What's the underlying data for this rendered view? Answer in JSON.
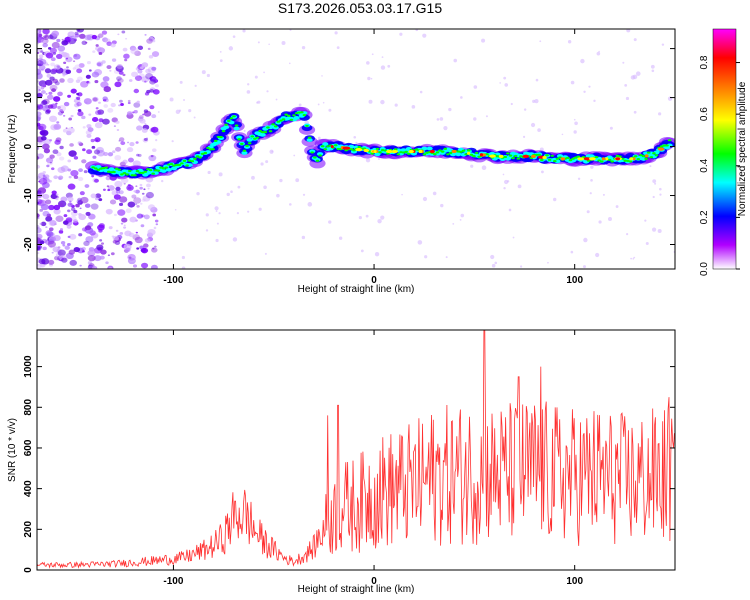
{
  "figure": {
    "title": "S173.2026.053.03.17.G15"
  },
  "chart_data": [
    {
      "type": "heatmap",
      "title": "S173.2026.053.03.17.G15",
      "xlabel": "Height of straight line (km)",
      "ylabel": "Frequency (Hz)",
      "xlim": [
        -168,
        150
      ],
      "ylim": [
        -25,
        24
      ],
      "xticks": [
        -100,
        0,
        100
      ],
      "yticks": [
        -20,
        -10,
        0,
        10,
        20
      ],
      "colorbar": {
        "label": "Normalized spectral amplitude",
        "range": [
          0,
          0.93
        ],
        "ticks": [
          "0.0",
          "0.2",
          "0.4",
          "0.6",
          "0.8"
        ],
        "colors": [
          "#ffffff",
          "#b000ff",
          "#0000ff",
          "#00ffff",
          "#00ff00",
          "#ffff00",
          "#ff8000",
          "#ff0000",
          "#ff00ff"
        ]
      },
      "ridge": {
        "x": [
          -140,
          -130,
          -120,
          -110,
          -100,
          -90,
          -80,
          -72,
          -70,
          -65,
          -60,
          -55,
          -50,
          -45,
          -40,
          -35,
          -33,
          -30,
          -28,
          -26,
          -25,
          -20,
          -10,
          0,
          10,
          20,
          30,
          40,
          50,
          60,
          70,
          80,
          90,
          100,
          110,
          120,
          130,
          140,
          148
        ],
        "y": [
          -4.5,
          -5,
          -5.5,
          -5,
          -4,
          -3,
          0,
          5,
          6,
          -1,
          2,
          3,
          4,
          6,
          6,
          7,
          3,
          -2,
          -3,
          0,
          0,
          0,
          -0.5,
          -1,
          -1,
          -1,
          -1,
          -1,
          -1.5,
          -2,
          -2,
          -2,
          -2.5,
          -2.5,
          -2.5,
          -2.5,
          -2.5,
          -1.5,
          1
        ]
      }
    },
    {
      "type": "line",
      "xlabel": "Height of straight line (km)",
      "ylabel": "SNR (10 * v/v)",
      "xlim": [
        -168,
        150
      ],
      "ylim": [
        0,
        1180
      ],
      "xticks": [
        -100,
        0,
        100
      ],
      "yticks": [
        0,
        200,
        400,
        600,
        800,
        1000
      ],
      "series": [
        {
          "name": "SNR",
          "color": "#ff3030",
          "x": [
            -168,
            -150,
            -130,
            -110,
            -95,
            -85,
            -80,
            -75,
            -70,
            -65,
            -62,
            -60,
            -55,
            -50,
            -45,
            -40,
            -35,
            -30,
            -25,
            -22,
            -20,
            -15,
            -10,
            -5,
            0,
            10,
            20,
            30,
            40,
            50,
            60,
            70,
            80,
            90,
            100,
            110,
            120,
            130,
            140,
            150
          ],
          "values": [
            25,
            25,
            30,
            45,
            60,
            95,
            120,
            160,
            260,
            280,
            240,
            200,
            140,
            100,
            60,
            40,
            70,
            110,
            210,
            240,
            270,
            310,
            320,
            340,
            380,
            400,
            420,
            460,
            470,
            480,
            470,
            480,
            490,
            470,
            460,
            470,
            450,
            440,
            460,
            470
          ],
          "spikes": [
            {
              "x": 55,
              "value": 1180
            },
            {
              "x": 83,
              "value": 1000
            },
            {
              "x": 72,
              "value": 950
            },
            {
              "x": -18,
              "value": 810
            },
            {
              "x": -23,
              "value": 760
            },
            {
              "x": 147,
              "value": 850
            }
          ]
        }
      ]
    }
  ]
}
